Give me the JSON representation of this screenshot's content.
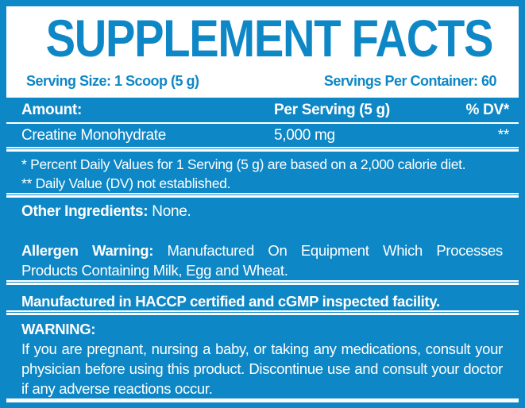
{
  "colors": {
    "brand_blue": "#0e87c6",
    "text_on_blue": "#ffffff"
  },
  "header": {
    "title": "SUPPLEMENT FACTS",
    "serving_size": "Serving Size: 1 Scoop (5 g)",
    "servings_per_container": "Servings Per Container: 60"
  },
  "table": {
    "columns": [
      "Amount:",
      "Per Serving (5 g)",
      "% DV*"
    ],
    "rows": [
      {
        "name": "Creatine Monohydrate",
        "per_serving": "5,000 mg",
        "dv": "**"
      }
    ]
  },
  "footnotes": [
    "* Percent Daily Values for 1 Serving (5 g) are based on a 2,000 calorie diet.",
    "** Daily Value (DV) not established."
  ],
  "other_ingredients": {
    "label": "Other Ingredients:",
    "value": "None."
  },
  "allergen_warning": {
    "label": "Allergen Warning:",
    "text": "Manufactured On Equipment Which Processes Products Containing Milk, Egg and Wheat."
  },
  "facility_statement": "Manufactured in HACCP certified and cGMP inspected facility.",
  "warning": {
    "label": "WARNING:",
    "text": "If you are pregnant, nursing a baby, or taking any medications, consult your physician before using this product. Discontinue use and consult your doctor if any adverse reactions occur."
  }
}
